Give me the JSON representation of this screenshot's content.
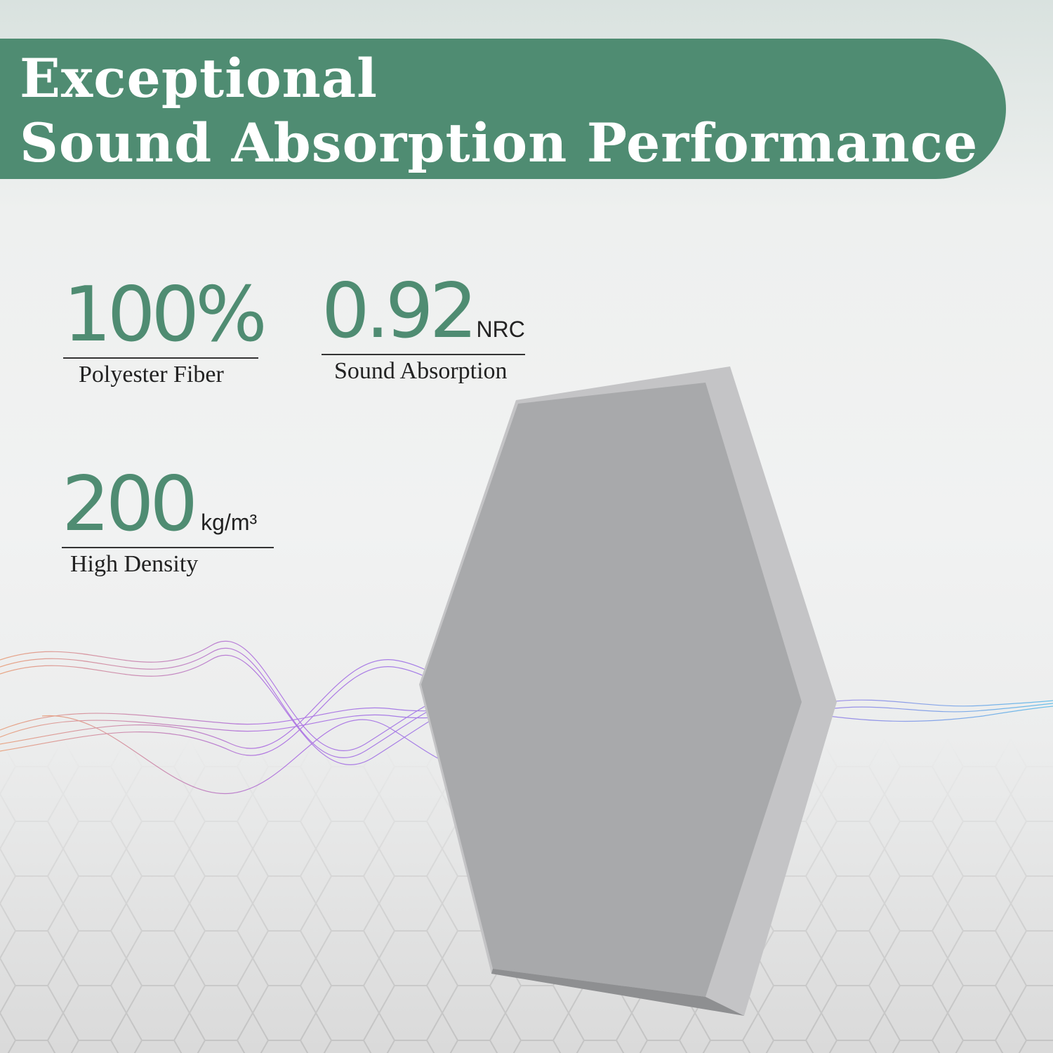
{
  "title": {
    "line1": "Exceptional",
    "line2": "Sound Absorption Performance"
  },
  "stats": [
    {
      "value": "100%",
      "unit": "",
      "label": "Polyester Fiber"
    },
    {
      "value": "0.92",
      "unit": "NRC",
      "label": "Sound Absorption"
    },
    {
      "value": "200",
      "unit": "kg/m³",
      "label": "High Density"
    }
  ],
  "colors": {
    "brand": "#4f8c72",
    "panel": "#a7a8aa"
  }
}
